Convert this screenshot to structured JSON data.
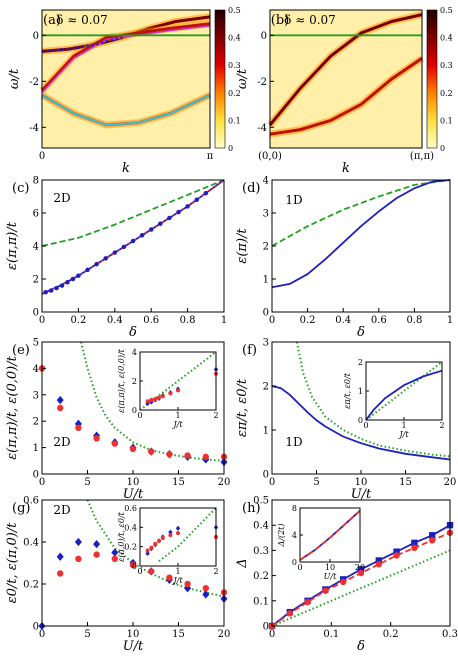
{
  "colors": {
    "blue": "#1f1fbf",
    "blue_marker": "#2020d0",
    "red": "#f03030",
    "green": "#22a022",
    "magenta": "#d030c0",
    "cyan": "#40c0d0",
    "axis": "#000000"
  },
  "chart_data": [
    {
      "id": "a",
      "type": "heatmap",
      "tag": "(a)",
      "annotation": "δ ≈ 0.07",
      "xlabel": "k",
      "ylabel": "ω/t",
      "xlim": [
        0,
        3.1416
      ],
      "ylim": [
        -4.9,
        1.1
      ],
      "x_ticks": [
        "0",
        "π"
      ],
      "y_ticks": [
        -4,
        -2,
        0
      ],
      "colorbar": {
        "ticks": [
          0,
          0.1,
          0.2,
          0.3,
          0.4,
          0.5
        ],
        "range": [
          0,
          0.5
        ],
        "colors": [
          "#ffffc8",
          "#ffe040",
          "#ff8000",
          "#e00000",
          "#800000",
          "#200000"
        ]
      },
      "reference_line": {
        "y": 0,
        "color": "green"
      },
      "bands": [
        {
          "name": "band-1",
          "x": [
            0,
            0.5,
            1.0,
            1.5,
            2.0,
            2.5,
            3.1416
          ],
          "y": [
            -0.7,
            -0.6,
            -0.4,
            -0.1,
            0.3,
            0.6,
            0.8
          ]
        },
        {
          "name": "band-2",
          "x": [
            0,
            0.6,
            1.2,
            1.8,
            2.4,
            3.1416
          ],
          "y": [
            -2.4,
            -0.9,
            -0.1,
            0.1,
            0.3,
            0.5
          ]
        },
        {
          "name": "band-3",
          "x": [
            0,
            0.6,
            1.2,
            1.8,
            2.4,
            3.1416
          ],
          "y": [
            -2.6,
            -3.4,
            -3.9,
            -3.8,
            -3.4,
            -2.6
          ]
        }
      ]
    },
    {
      "id": "b",
      "type": "heatmap",
      "tag": "(b)",
      "annotation": "δ ≈ 0.07",
      "xlabel": "k",
      "ylabel": "ω/t",
      "xlim": [
        0,
        1
      ],
      "ylim": [
        -4.9,
        1.1
      ],
      "x_ticks": [
        "(0,0)",
        "(π,π)"
      ],
      "y_ticks": [
        -4,
        -2,
        0
      ],
      "colorbar": {
        "ticks": [
          0,
          0.1,
          0.2,
          0.3,
          0.4,
          0.5
        ],
        "range": [
          0,
          0.5
        ],
        "colors": [
          "#ffffc8",
          "#ffe040",
          "#ff8000",
          "#e00000",
          "#800000",
          "#200000"
        ]
      },
      "reference_line": {
        "y": 0,
        "color": "green"
      },
      "bands": [
        {
          "name": "band-1",
          "x": [
            0,
            0.2,
            0.4,
            0.6,
            0.8,
            1.0
          ],
          "y": [
            -3.9,
            -2.3,
            -0.9,
            0.1,
            0.6,
            0.9
          ]
        },
        {
          "name": "band-2",
          "x": [
            0,
            0.2,
            0.4,
            0.6,
            0.8,
            1.0
          ],
          "y": [
            -4.3,
            -4.1,
            -3.7,
            -3.0,
            -1.9,
            -1.0
          ]
        }
      ]
    },
    {
      "id": "c",
      "type": "line",
      "tag": "(c)",
      "annotation": "2D",
      "xlabel": "δ",
      "ylabel": "ε(π,π)/t",
      "xlim": [
        0,
        1
      ],
      "ylim": [
        0,
        8
      ],
      "x_ticks": [
        0,
        0.2,
        0.4,
        0.6,
        0.8,
        1
      ],
      "y_ticks": [
        0,
        2,
        4,
        6,
        8
      ],
      "series": [
        {
          "style": "dashed",
          "color": "green",
          "x": [
            0,
            0.2,
            0.4,
            0.6,
            0.8,
            1
          ],
          "y": [
            4.0,
            4.5,
            5.3,
            6.2,
            7.1,
            8.0
          ]
        },
        {
          "style": "solid",
          "color": "blue",
          "x": [
            0,
            0.1,
            0.2,
            0.3,
            0.4,
            0.5,
            0.6,
            0.7,
            0.8,
            0.9,
            1
          ],
          "y": [
            1.1,
            1.6,
            2.2,
            2.9,
            3.6,
            4.3,
            5.0,
            5.7,
            6.4,
            7.2,
            8.0
          ]
        },
        {
          "style": "dotted",
          "color": "red",
          "x": [
            0,
            0.1,
            0.2,
            0.3,
            0.4,
            0.5,
            0.6,
            0.7,
            0.8,
            0.9,
            1
          ],
          "y": [
            1.1,
            1.6,
            2.2,
            2.9,
            3.6,
            4.3,
            5.0,
            5.7,
            6.4,
            7.2,
            8.0
          ]
        },
        {
          "style": "markers",
          "color": "blue",
          "x": [
            0.02,
            0.05,
            0.08,
            0.11,
            0.14,
            0.17,
            0.2,
            0.25,
            0.3,
            0.35,
            0.4,
            0.45,
            0.5,
            0.55,
            0.6,
            0.65,
            0.7,
            0.75,
            0.8,
            0.85,
            0.9
          ],
          "y": [
            1.2,
            1.3,
            1.45,
            1.6,
            1.8,
            2.0,
            2.2,
            2.55,
            2.9,
            3.25,
            3.6,
            3.95,
            4.3,
            4.65,
            5.0,
            5.35,
            5.7,
            6.05,
            6.4,
            6.8,
            7.2
          ]
        }
      ]
    },
    {
      "id": "d",
      "type": "line",
      "tag": "(d)",
      "annotation": "1D",
      "xlabel": "δ",
      "ylabel": "ε(π)/t",
      "xlim": [
        0,
        1
      ],
      "ylim": [
        0,
        4
      ],
      "x_ticks": [
        0,
        0.2,
        0.4,
        0.6,
        0.8,
        1
      ],
      "y_ticks": [
        0,
        1,
        2,
        3,
        4
      ],
      "series": [
        {
          "style": "dashed",
          "color": "green",
          "x": [
            0,
            0.2,
            0.4,
            0.6,
            0.8,
            1
          ],
          "y": [
            2.0,
            2.6,
            3.1,
            3.5,
            3.85,
            4.0
          ]
        },
        {
          "style": "solid",
          "color": "blue",
          "x": [
            0,
            0.1,
            0.2,
            0.3,
            0.4,
            0.5,
            0.6,
            0.7,
            0.8,
            0.9,
            1
          ],
          "y": [
            0.75,
            0.85,
            1.15,
            1.6,
            2.1,
            2.6,
            3.05,
            3.45,
            3.75,
            3.95,
            4.0
          ]
        }
      ]
    },
    {
      "id": "e",
      "type": "scatter",
      "tag": "(e)",
      "annotation": "2D",
      "xlabel": "U/t",
      "ylabel": "ε(π,π)/t, ε(0,0)/t",
      "xlim": [
        0,
        20
      ],
      "ylim": [
        0,
        5
      ],
      "x_ticks": [
        0,
        5,
        10,
        15,
        20
      ],
      "y_ticks": [
        0,
        1,
        2,
        3,
        4,
        5
      ],
      "series": [
        {
          "style": "dotted",
          "color": "green",
          "x": [
            4.3,
            5,
            6,
            7,
            8,
            10,
            12,
            14,
            16,
            18,
            20
          ],
          "y": [
            5.0,
            4.0,
            2.9,
            2.2,
            1.75,
            1.2,
            0.9,
            0.75,
            0.63,
            0.55,
            0.5
          ]
        },
        {
          "style": "diamond",
          "color": "blue",
          "x": [
            0,
            2,
            4,
            6,
            8,
            10,
            12,
            14,
            16,
            18,
            20
          ],
          "y": [
            4.0,
            2.8,
            1.9,
            1.45,
            1.2,
            1.0,
            0.85,
            0.75,
            0.65,
            0.55,
            0.45
          ]
        },
        {
          "style": "circle",
          "color": "red",
          "x": [
            0,
            2,
            4,
            6,
            8,
            10,
            12,
            14,
            16,
            18,
            20
          ],
          "y": [
            4.0,
            2.5,
            1.75,
            1.35,
            1.15,
            0.95,
            0.85,
            0.75,
            0.7,
            0.65,
            0.65
          ]
        }
      ],
      "inset": {
        "xlabel": "J/t",
        "ylabel": "ε(π,π)/t, ε(0,0)/t",
        "xlim": [
          0,
          2
        ],
        "ylim": [
          0,
          4
        ],
        "x_ticks": [
          0,
          1,
          2
        ],
        "y_ticks": [
          0,
          2,
          4
        ],
        "series": [
          {
            "style": "dotted",
            "color": "green",
            "x": [
              0,
              0.5,
              1,
              1.5,
              2
            ],
            "y": [
              0,
              1.0,
              2.0,
              3.0,
              4.0
            ]
          },
          {
            "style": "diamond",
            "color": "blue",
            "x": [
              0.2,
              0.3,
              0.4,
              0.5,
              0.6,
              0.8,
              1.0,
              2.0
            ],
            "y": [
              0.45,
              0.55,
              0.7,
              0.8,
              1.0,
              1.2,
              1.45,
              2.8
            ]
          },
          {
            "style": "circle",
            "color": "red",
            "x": [
              0.2,
              0.3,
              0.4,
              0.5,
              0.6,
              0.8,
              1.0,
              2.0
            ],
            "y": [
              0.6,
              0.7,
              0.75,
              0.85,
              0.95,
              1.15,
              1.35,
              2.5
            ]
          }
        ]
      }
    },
    {
      "id": "f",
      "type": "line",
      "tag": "(f)",
      "annotation": "1D",
      "xlabel": "U/t",
      "ylabel": "επ/t, ε0/t",
      "xlim": [
        0,
        20
      ],
      "ylim": [
        0,
        3
      ],
      "x_ticks": [
        0,
        5,
        10,
        15,
        20
      ],
      "y_ticks": [
        0,
        1,
        2,
        3
      ],
      "series": [
        {
          "style": "dotted",
          "color": "green",
          "x": [
            2.8,
            3.5,
            4.5,
            6,
            8,
            10,
            12,
            15,
            18,
            20
          ],
          "y": [
            3.0,
            2.3,
            1.75,
            1.3,
            1.0,
            0.8,
            0.65,
            0.53,
            0.44,
            0.4
          ]
        },
        {
          "style": "solid",
          "color": "blue",
          "x": [
            0,
            1,
            2,
            3,
            4,
            5,
            6,
            8,
            10,
            12,
            15,
            18,
            20
          ],
          "y": [
            2.0,
            1.95,
            1.8,
            1.6,
            1.4,
            1.22,
            1.08,
            0.85,
            0.7,
            0.58,
            0.46,
            0.38,
            0.33
          ]
        }
      ],
      "inset": {
        "xlabel": "J/t",
        "ylabel": "επ/t, ε0/t",
        "xlim": [
          0,
          2
        ],
        "ylim": [
          0,
          2
        ],
        "x_ticks": [
          0,
          1,
          2
        ],
        "y_ticks": [
          0,
          1,
          2
        ],
        "series": [
          {
            "style": "dotted",
            "color": "green",
            "x": [
              0,
              0.5,
              1,
              1.5,
              2
            ],
            "y": [
              0,
              0.5,
              1.0,
              1.5,
              2.0
            ]
          },
          {
            "style": "solid",
            "color": "blue",
            "x": [
              0,
              0.2,
              0.5,
              1,
              1.5,
              2
            ],
            "y": [
              0,
              0.35,
              0.75,
              1.2,
              1.5,
              1.7
            ]
          }
        ]
      }
    },
    {
      "id": "g",
      "type": "scatter",
      "tag": "(g)",
      "annotation": "2D",
      "xlabel": "U/t",
      "ylabel": "ε0/t, ε(π,0)/t",
      "xlim": [
        0,
        20
      ],
      "ylim": [
        0,
        0.6
      ],
      "x_ticks": [
        0,
        5,
        10,
        15,
        20
      ],
      "y_ticks": [
        0,
        0.2,
        0.4,
        0.6
      ],
      "series": [
        {
          "style": "dotted",
          "color": "green",
          "x": [
            5,
            6,
            8,
            10,
            12,
            14,
            16,
            18,
            20
          ],
          "y": [
            0.6,
            0.5,
            0.37,
            0.3,
            0.25,
            0.21,
            0.18,
            0.16,
            0.14
          ]
        },
        {
          "style": "diamond",
          "color": "blue",
          "x": [
            0,
            2,
            4,
            6,
            8,
            10,
            12,
            14,
            16,
            18,
            20
          ],
          "y": [
            0.0,
            0.33,
            0.4,
            0.39,
            0.35,
            0.3,
            0.26,
            0.22,
            0.18,
            0.15,
            0.13
          ]
        },
        {
          "style": "circle",
          "color": "red",
          "x": [
            2,
            4,
            6,
            8,
            10,
            12,
            14,
            16,
            18,
            20
          ],
          "y": [
            0.25,
            0.32,
            0.34,
            0.32,
            0.29,
            0.26,
            0.23,
            0.2,
            0.18,
            0.16
          ]
        }
      ],
      "inset": {
        "xlabel": "J/t",
        "ylabel": "ε(π,0)/t, ε0/t",
        "xlim": [
          0,
          2
        ],
        "ylim": [
          0,
          0.6
        ],
        "x_ticks": [
          0,
          1,
          2
        ],
        "y_ticks": [
          0,
          0.2,
          0.4,
          0.6
        ],
        "series": [
          {
            "style": "dotted",
            "color": "green",
            "x": [
              0.5,
              1,
              1.5,
              2
            ],
            "y": [
              0.05,
              0.2,
              0.4,
              0.6
            ]
          },
          {
            "style": "diamond",
            "color": "blue",
            "x": [
              0.2,
              0.3,
              0.4,
              0.5,
              0.6,
              0.8,
              1.0,
              2.0
            ],
            "y": [
              0.13,
              0.18,
              0.22,
              0.26,
              0.3,
              0.35,
              0.39,
              0.4
            ]
          },
          {
            "style": "circle",
            "color": "red",
            "x": [
              0.2,
              0.3,
              0.4,
              0.5,
              0.6,
              0.8,
              1.0,
              2.0
            ],
            "y": [
              0.16,
              0.19,
              0.23,
              0.26,
              0.29,
              0.32,
              0.34,
              0.3
            ]
          }
        ]
      }
    },
    {
      "id": "h",
      "type": "line",
      "tag": "(h)",
      "xlabel": "δ",
      "ylabel": "Δ",
      "xlim": [
        0,
        0.3
      ],
      "ylim": [
        0,
        0.5
      ],
      "x_ticks": [
        0,
        0.1,
        0.2,
        0.3
      ],
      "y_ticks": [
        0,
        0.1,
        0.2,
        0.3,
        0.4,
        0.5
      ],
      "series": [
        {
          "style": "dotted",
          "color": "green",
          "x": [
            0,
            0.3
          ],
          "y": [
            0,
            0.3
          ]
        },
        {
          "style": "solid-square",
          "color": "blue",
          "x": [
            0,
            0.03,
            0.06,
            0.09,
            0.12,
            0.15,
            0.18,
            0.21,
            0.24,
            0.27,
            0.3
          ],
          "y": [
            0,
            0.055,
            0.1,
            0.145,
            0.185,
            0.225,
            0.26,
            0.295,
            0.33,
            0.36,
            0.4
          ]
        },
        {
          "style": "dashed-circle",
          "color": "red",
          "x": [
            0,
            0.03,
            0.06,
            0.09,
            0.12,
            0.15,
            0.18,
            0.21,
            0.24,
            0.27,
            0.3
          ],
          "y": [
            0,
            0.05,
            0.095,
            0.14,
            0.175,
            0.21,
            0.245,
            0.28,
            0.31,
            0.34,
            0.37
          ]
        }
      ],
      "inset": {
        "xlabel": "U/t",
        "ylabel": "Δ/(2t)",
        "xlim": [
          0,
          20
        ],
        "ylim": [
          0,
          8
        ],
        "x_ticks": [
          0,
          10,
          20
        ],
        "y_ticks": [
          0,
          4,
          8
        ],
        "series": [
          {
            "style": "solid",
            "color": "blue",
            "x": [
              0,
              5,
              10,
              15,
              20
            ],
            "y": [
              0.3,
              1.8,
              3.6,
              5.6,
              7.6
            ]
          },
          {
            "style": "dashed",
            "color": "red",
            "x": [
              0,
              5,
              10,
              15,
              20
            ],
            "y": [
              0.3,
              1.8,
              3.6,
              5.6,
              7.6
            ]
          }
        ]
      }
    }
  ]
}
